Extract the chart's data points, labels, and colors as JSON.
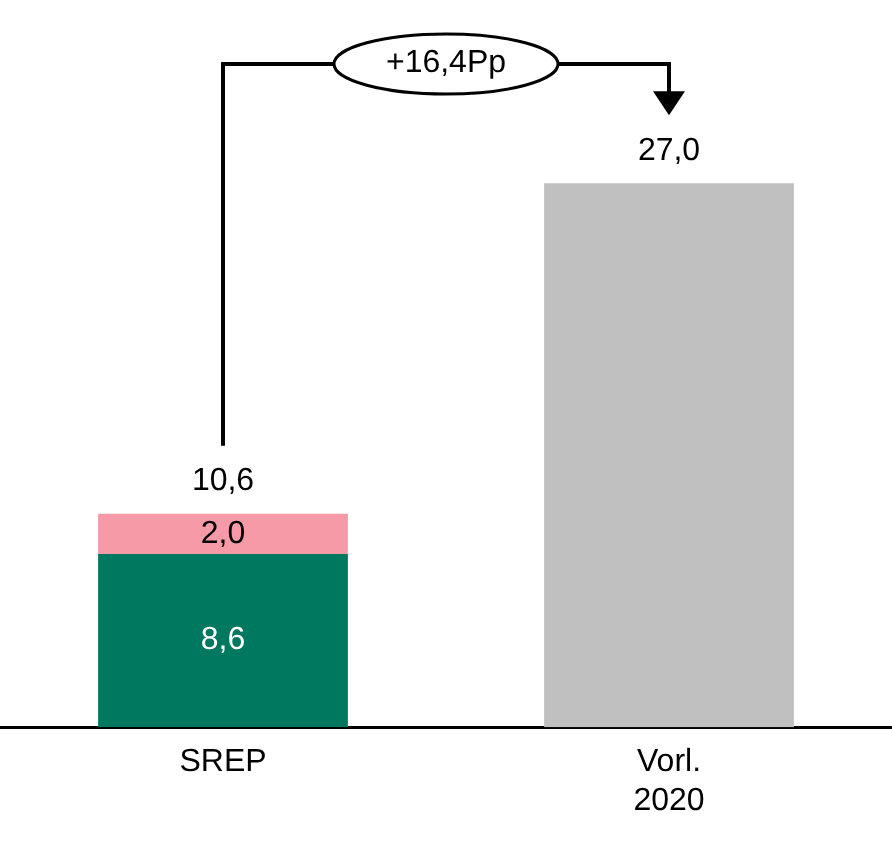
{
  "chart_data": {
    "type": "bar",
    "stacked": true,
    "categories": [
      "SREP",
      "Vorl. 2020"
    ],
    "series": [
      {
        "colors": [
          "#00775f",
          "#c0c0c0"
        ],
        "values": [
          8.6,
          27.0
        ],
        "value_labels": [
          "8,6",
          null
        ]
      },
      {
        "color": "#f59aa6",
        "values": [
          2.0,
          null
        ],
        "value_labels": [
          "2,0",
          null
        ]
      }
    ],
    "totals": [
      "10,6",
      "27,0"
    ],
    "annotations": [
      "+16,4Pp"
    ],
    "grid": false,
    "legend": false,
    "tick_labels": "x"
  }
}
